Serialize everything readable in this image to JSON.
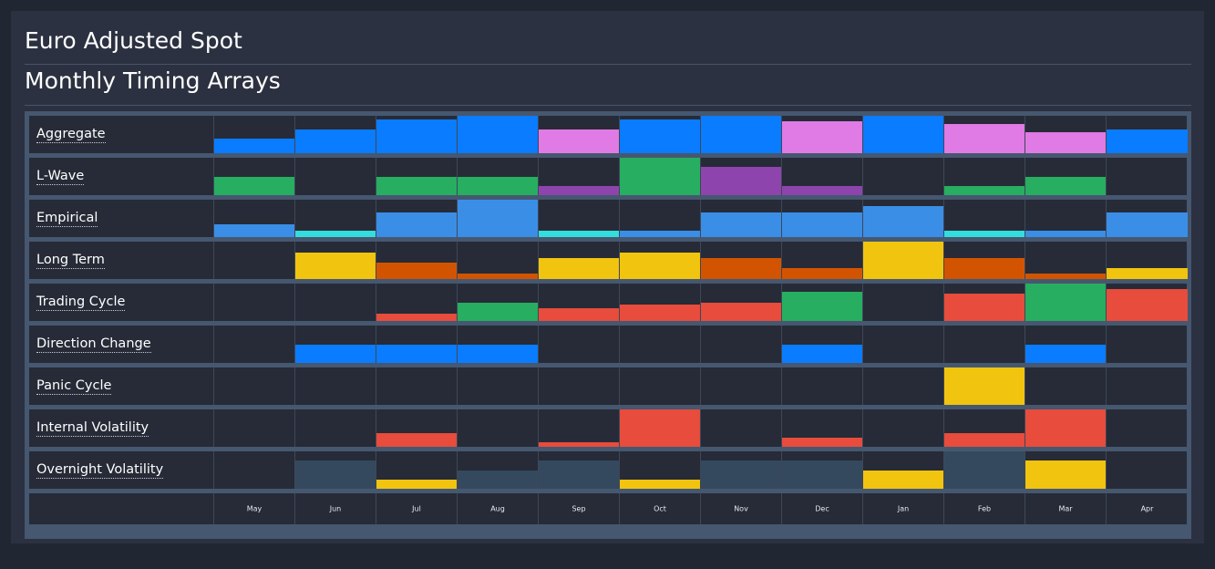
{
  "titles": {
    "main": "Euro Adjusted Spot",
    "sub": "Monthly Timing Arrays"
  },
  "colors": {
    "blue": "#0a7cff",
    "pink": "#e07ae4",
    "green": "#27ae60",
    "purple": "#8e44ad",
    "lightblue": "#3a8ee6",
    "cyan": "#33dddd",
    "yellow": "#f1c40f",
    "orange": "#d35400",
    "red": "#e74c3c",
    "slate": "#34495e"
  },
  "chart_data": {
    "type": "heatmap",
    "categories": [
      "May",
      "Jun",
      "Jul",
      "Aug",
      "Sep",
      "Oct",
      "Nov",
      "Dec",
      "Jan",
      "Feb",
      "Mar",
      "Apr"
    ],
    "series": [
      {
        "name": "Aggregate",
        "values": [
          0.38,
          0.63,
          0.9,
          1.0,
          0.63,
          0.9,
          1.0,
          0.85,
          1.0,
          0.77,
          0.57,
          0.63
        ],
        "colors": [
          "blue",
          "blue",
          "blue",
          "blue",
          "pink",
          "blue",
          "blue",
          "pink",
          "blue",
          "pink",
          "pink",
          "blue"
        ]
      },
      {
        "name": "L-Wave",
        "values": [
          0.5,
          0,
          0.5,
          0.5,
          0.25,
          1.0,
          0.75,
          0.25,
          0,
          0.25,
          0.5,
          0
        ],
        "colors": [
          "green",
          "green",
          "green",
          "green",
          "purple",
          "green",
          "purple",
          "purple",
          "green",
          "green",
          "green",
          "green"
        ]
      },
      {
        "name": "Empirical",
        "values": [
          0.33,
          0.16,
          0.66,
          1.0,
          0.16,
          0.16,
          0.66,
          0.66,
          0.83,
          0.16,
          0.16,
          0.66
        ],
        "colors": [
          "lightblue",
          "cyan",
          "lightblue",
          "lightblue",
          "cyan",
          "lightblue",
          "lightblue",
          "lightblue",
          "lightblue",
          "cyan",
          "lightblue",
          "lightblue"
        ]
      },
      {
        "name": "Long Term",
        "values": [
          0,
          0.71,
          0.43,
          0.14,
          0.57,
          0.71,
          0.57,
          0.29,
          1.0,
          0.57,
          0.14,
          0.29
        ],
        "colors": [
          "yellow",
          "yellow",
          "orange",
          "orange",
          "yellow",
          "yellow",
          "orange",
          "orange",
          "yellow",
          "orange",
          "orange",
          "yellow"
        ]
      },
      {
        "name": "Trading Cycle",
        "values": [
          0,
          0,
          0.2,
          0.5,
          0.35,
          0.43,
          0.5,
          0.78,
          0,
          0.72,
          1.0,
          0.85
        ],
        "colors": [
          "red",
          "red",
          "red",
          "green",
          "red",
          "red",
          "red",
          "green",
          "red",
          "red",
          "green",
          "red"
        ]
      },
      {
        "name": "Direction Change",
        "values": [
          0,
          0.5,
          0.5,
          0.5,
          0,
          0,
          0,
          0.5,
          0,
          0,
          0.5,
          0
        ],
        "colors": [
          "blue",
          "blue",
          "blue",
          "blue",
          "blue",
          "blue",
          "blue",
          "blue",
          "blue",
          "blue",
          "blue",
          "blue"
        ]
      },
      {
        "name": "Panic Cycle",
        "values": [
          0,
          0,
          0,
          0,
          0,
          0,
          0,
          0,
          0,
          1.0,
          0,
          0
        ],
        "colors": [
          "yellow",
          "yellow",
          "yellow",
          "yellow",
          "yellow",
          "yellow",
          "yellow",
          "yellow",
          "yellow",
          "yellow",
          "yellow",
          "yellow"
        ]
      },
      {
        "name": "Internal Volatility",
        "values": [
          0,
          0,
          0.36,
          0,
          0.12,
          1.0,
          0,
          0.24,
          0,
          0.36,
          1.0,
          0
        ],
        "colors": [
          "red",
          "red",
          "red",
          "red",
          "red",
          "red",
          "red",
          "red",
          "red",
          "red",
          "red",
          "red"
        ]
      },
      {
        "name": "Overnight Volatility",
        "values": [
          0,
          0.75,
          0.25,
          0.5,
          0.75,
          0.25,
          0.75,
          0.75,
          0.5,
          1.0,
          0.75,
          0
        ],
        "colors": [
          "slate",
          "slate",
          "yellow",
          "slate",
          "slate",
          "yellow",
          "slate",
          "slate",
          "yellow",
          "slate",
          "yellow",
          "slate"
        ]
      }
    ]
  }
}
